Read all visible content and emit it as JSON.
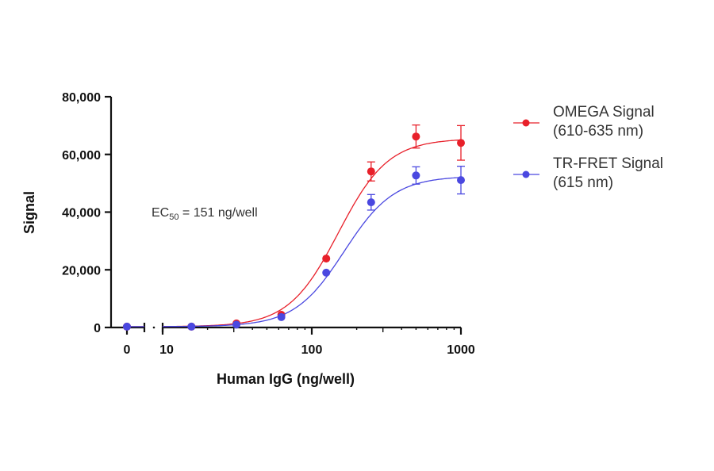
{
  "chart_data": {
    "type": "scatter",
    "xlabel": "Human IgG (ng/well)",
    "ylabel": "Signal",
    "x_scale": "log",
    "x_break": true,
    "xlim": [
      10,
      1000
    ],
    "ylim": [
      0,
      80000
    ],
    "y_ticks": [
      0,
      20000,
      40000,
      60000,
      80000
    ],
    "y_tick_labels": [
      "0",
      "20,000",
      "40,000",
      "60,000",
      "80,000"
    ],
    "x_tick_labels": [
      "0",
      "10",
      "100",
      "1000"
    ],
    "x_ticks": [
      10,
      100,
      1000
    ],
    "grid": false,
    "legend_position": "right",
    "annotation": {
      "main": "EC",
      "sub": "50",
      "rest": " = 151 ng/well"
    },
    "x": [
      0,
      15.6,
      31.25,
      62.5,
      125,
      250,
      500,
      1000
    ],
    "series": [
      {
        "name": "OMEGA Signal",
        "name_line2": "(610-635 nm)",
        "color": "#e8202a",
        "values": [
          300,
          300,
          1400,
          4400,
          23900,
          54100,
          66200,
          64000
        ],
        "errors": [
          0,
          0,
          0,
          0,
          0,
          3300,
          4000,
          6000
        ],
        "fit": {
          "bottom": 300,
          "top": 65500,
          "ec50": 151,
          "hill": 2.6
        }
      },
      {
        "name": "TR-FRET Signal",
        "name_line2": "(615 nm)",
        "color": "#4a48e0",
        "values": [
          300,
          300,
          1000,
          3600,
          19000,
          43400,
          52700,
          51100
        ],
        "errors": [
          0,
          0,
          0,
          0,
          0,
          2700,
          3000,
          4800
        ],
        "fit": {
          "bottom": 300,
          "top": 52500,
          "ec50": 165,
          "hill": 2.6
        }
      }
    ]
  }
}
